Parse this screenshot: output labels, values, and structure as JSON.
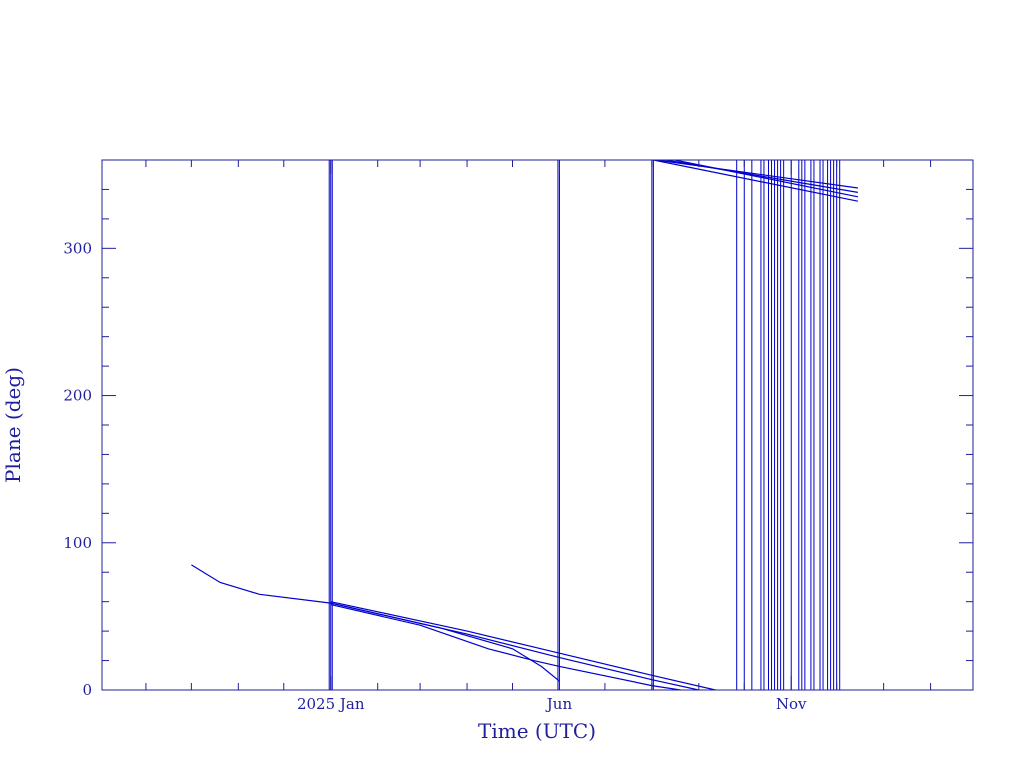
{
  "chart_data": {
    "type": "line",
    "title": "",
    "xlabel": "Time (UTC)",
    "ylabel": "Plane (deg)",
    "colors": {
      "axis": "#1f1f9e",
      "series": "#0000cc"
    },
    "xlim": [
      "2024-08-03",
      "2026-03-01"
    ],
    "ylim": [
      0,
      360
    ],
    "grid": false,
    "legend": "none",
    "x_ticks": [
      {
        "date": "2025-01-01",
        "label": "2025 Jan"
      },
      {
        "date": "2025-06-01",
        "label": "Jun"
      },
      {
        "date": "2025-11-01",
        "label": "Nov"
      }
    ],
    "y_ticks": [
      0,
      100,
      200,
      300
    ],
    "series": [
      {
        "points": [
          [
            "2024-10-01",
            85
          ],
          [
            "2024-10-20",
            73
          ],
          [
            "2024-11-15",
            65
          ],
          [
            "2025-01-01",
            59
          ],
          [
            "2025-04-01",
            38
          ],
          [
            "2025-06-01",
            22
          ],
          [
            "2025-08-01",
            7
          ],
          [
            "2025-09-01",
            0
          ]
        ]
      },
      {
        "points": [
          [
            "2025-01-01",
            60
          ],
          [
            "2025-04-01",
            40
          ],
          [
            "2025-06-01",
            25
          ],
          [
            "2025-08-01",
            10
          ],
          [
            "2025-09-12",
            0
          ]
        ]
      },
      {
        "points": [
          [
            "2025-01-01",
            58
          ],
          [
            "2025-03-01",
            44
          ],
          [
            "2025-04-15",
            28
          ],
          [
            "2025-05-15",
            20
          ],
          [
            "2025-06-01",
            16
          ],
          [
            "2025-08-01",
            3
          ],
          [
            "2025-08-20",
            0
          ]
        ]
      },
      {
        "points": [
          [
            "2025-01-01",
            59
          ],
          [
            "2025-03-15",
            42
          ],
          [
            "2025-05-01",
            28
          ],
          [
            "2025-05-20",
            16
          ],
          [
            "2025-06-01",
            6
          ]
        ]
      },
      {
        "points": [
          [
            "2025-08-04",
            360
          ],
          [
            "2025-12-15",
            341
          ]
        ]
      },
      {
        "points": [
          [
            "2025-08-10",
            360
          ],
          [
            "2025-12-15",
            338
          ]
        ]
      },
      {
        "points": [
          [
            "2025-08-16",
            360
          ],
          [
            "2025-12-15",
            335
          ]
        ]
      },
      {
        "points": [
          [
            "2025-08-02",
            360
          ],
          [
            "2025-12-15",
            332
          ]
        ]
      }
    ],
    "vertical_lines": [
      "2024-12-31",
      "2025-01-01",
      "2025-01-02",
      "2025-05-31",
      "2025-06-01",
      "2025-08-01",
      "2025-08-02",
      "2025-09-26",
      "2025-10-01",
      "2025-10-06",
      "2025-10-12",
      "2025-10-14",
      "2025-10-17",
      "2025-10-19",
      "2025-10-21",
      "2025-10-23",
      "2025-10-25",
      "2025-10-27",
      "2025-11-01",
      "2025-11-06",
      "2025-11-08",
      "2025-11-10",
      "2025-11-14",
      "2025-11-16",
      "2025-11-20",
      "2025-11-22",
      "2025-11-25",
      "2025-11-27",
      "2025-11-29",
      "2025-12-01",
      "2025-12-03"
    ]
  }
}
